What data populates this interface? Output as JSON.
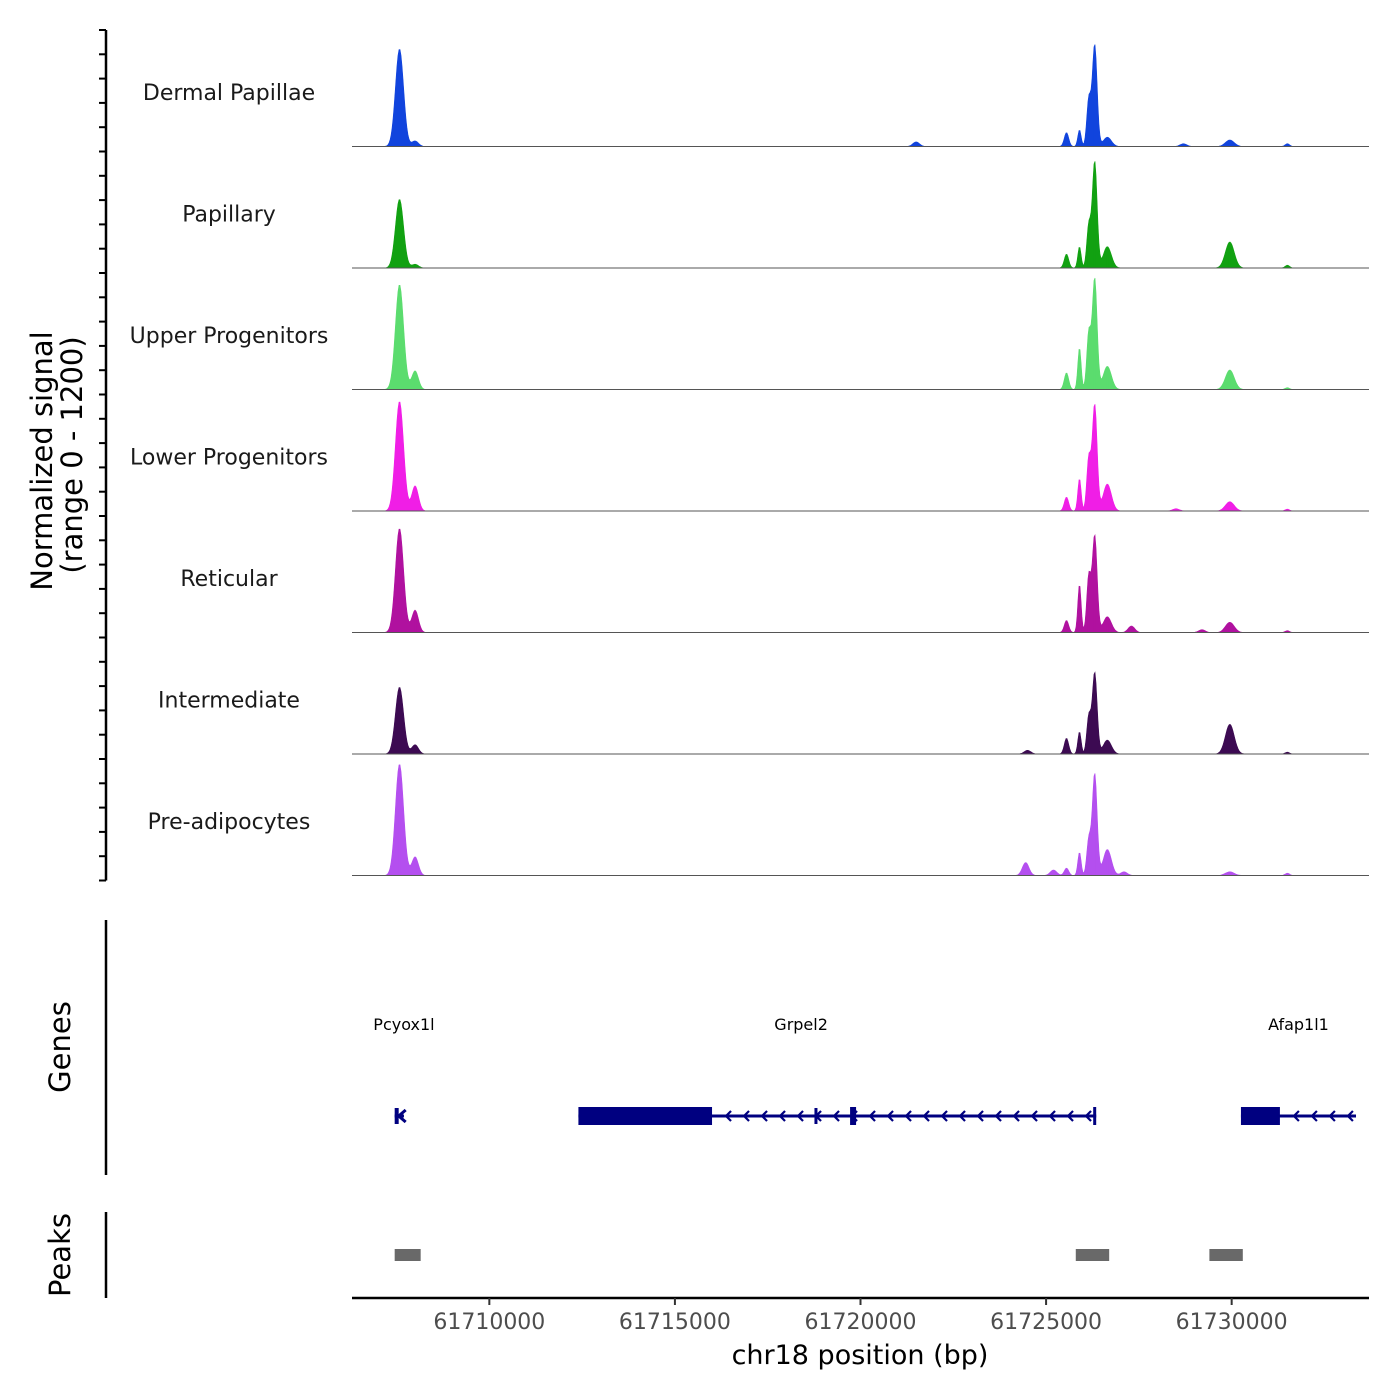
{
  "chart_data": {
    "type": "area",
    "title": "",
    "ylabel_line1": "Normalized signal",
    "ylabel_line2": "(range 0 - 1200)",
    "ylim": [
      0,
      1200
    ],
    "xlabel": "chr18 position (bp)",
    "xlim": [
      61706300,
      61733700
    ],
    "xticks": [
      61710000,
      61715000,
      61720000,
      61725000,
      61730000
    ],
    "xtick_labels": [
      "61710000",
      "61715000",
      "61720000",
      "61725000",
      "61730000"
    ],
    "peak_positions": [
      61707580,
      61708000,
      61725550,
      61725900,
      61726150,
      61726310,
      61726650,
      61729950,
      61731500
    ],
    "series": [
      {
        "name": "Dermal Papillae",
        "color": "#1144dd",
        "values": [
          1050,
          60,
          150,
          180,
          500,
          1100,
          100,
          70,
          30
        ],
        "extra": [
          [
            61721500,
            50
          ],
          [
            61728700,
            30
          ]
        ]
      },
      {
        "name": "Papillary",
        "color": "#11a111",
        "values": [
          740,
          40,
          150,
          230,
          450,
          1150,
          230,
          280,
          30
        ],
        "extra": []
      },
      {
        "name": "Upper Progenitors",
        "color": "#5bdc6e",
        "values": [
          1130,
          200,
          180,
          450,
          600,
          1200,
          250,
          210,
          20
        ],
        "extra": []
      },
      {
        "name": "Lower Progenitors",
        "color": "#f01ee6",
        "values": [
          1180,
          270,
          150,
          350,
          560,
          1150,
          290,
          100,
          20
        ],
        "extra": [
          [
            61728500,
            25
          ]
        ]
      },
      {
        "name": "Reticular",
        "color": "#b0119f",
        "values": [
          1120,
          240,
          130,
          520,
          600,
          1050,
          170,
          110,
          20
        ],
        "extra": [
          [
            61727300,
            70
          ],
          [
            61729200,
            30
          ]
        ]
      },
      {
        "name": "Intermediate",
        "color": "#3c0a52",
        "values": [
          720,
          100,
          170,
          240,
          400,
          880,
          150,
          320,
          20
        ],
        "extra": [
          [
            61724500,
            40
          ]
        ]
      },
      {
        "name": "Pre-adipocytes",
        "color": "#b44fef",
        "values": [
          1200,
          200,
          80,
          250,
          380,
          1100,
          280,
          40,
          25
        ],
        "extra": [
          [
            61724450,
            140
          ],
          [
            61725200,
            60
          ],
          [
            61727100,
            40
          ]
        ]
      }
    ],
    "genes": {
      "axis_label": "Genes",
      "color": "#000080",
      "items": [
        {
          "name": "Pcyox1l",
          "start": 61707450,
          "end": 61707700,
          "strand": "-",
          "label_pos": 61707700
        },
        {
          "name": "Grpel2",
          "start": 61712400,
          "end": 61726350,
          "cds_end": 61716000,
          "strand": "-",
          "label_pos": 61718400
        },
        {
          "name": "Afap1l1",
          "start": 61730250,
          "end": 61733350,
          "cds_end": 61731300,
          "strand": "-",
          "label_pos": 61731800
        }
      ]
    },
    "peaks": {
      "axis_label": "Peaks",
      "color": "#696969",
      "items": [
        {
          "start": 61707450,
          "end": 61708150
        },
        {
          "start": 61725800,
          "end": 61726700
        },
        {
          "start": 61729400,
          "end": 61730300
        }
      ]
    }
  }
}
